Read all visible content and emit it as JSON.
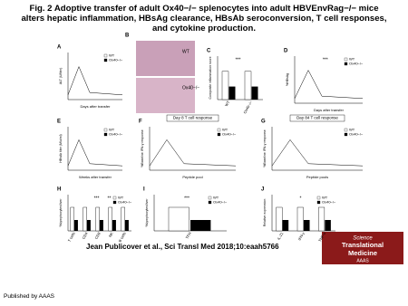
{
  "header": {
    "title": "Fig. 2 Adoptive transfer of adult Ox40−/− splenocytes into adult HBVEnvRag−/− mice alters hepatic inflammation, HBsAg clearance, HBsAb seroconversion, T cell responses, and cytokine production."
  },
  "panels": [
    {
      "label": "A",
      "y_axis": "ALT (U/liter)",
      "x_axis": "Days after transfer",
      "legend": [
        "WT",
        "Ox40−/−"
      ]
    },
    {
      "label": "B",
      "image_labels": [
        "WT",
        "Ox40−/−"
      ]
    },
    {
      "label": "C",
      "y_axis": "Composite inflammation score",
      "categories": [
        "WT",
        "Ox40−/−"
      ],
      "annotations": [
        "***"
      ]
    },
    {
      "label": "D",
      "y_axis": "%HBsAg",
      "x_axis": "Days after transfer",
      "legend": [
        "WT",
        "Ox40−/−"
      ],
      "annotations": [
        "***"
      ]
    },
    {
      "label": "E",
      "y_axis": "HBsAb titer (Mlu/ml)",
      "x_axis": "Weeks after transfer",
      "legend": [
        "WT",
        "Ox40−/−"
      ]
    },
    {
      "label": "F",
      "title": "Day 8 T cell response",
      "y_axis": "%Baseline IFN-γ response",
      "x_axis": "Peptide pool",
      "legend": [
        "WT",
        "Ox40−/−"
      ]
    },
    {
      "label": "G",
      "title": "Day 84 T cell response",
      "y_axis": "%Baseline IFN-γ response",
      "x_axis": "Peptide pools",
      "legend": [
        "WT",
        "Ox40−/−"
      ]
    },
    {
      "label": "H",
      "y_axis": "%Lymphocytes/liver",
      "categories": [
        "T cells",
        "CD4",
        "CD8",
        "NK",
        "B cells"
      ],
      "legend": [
        "WT",
        "Ox40−/−"
      ],
      "annotations": [
        "***",
        "**"
      ]
    },
    {
      "label": "I",
      "y_axis": "%Lymphocytes/liver",
      "categories": [
        "TFH"
      ],
      "legend": [
        "WT",
        "Ox40−/−"
      ],
      "annotations": [
        "***"
      ]
    },
    {
      "label": "J",
      "y_axis": "Relative expression",
      "categories": [
        "IL-21",
        "IFN-γ",
        "TNF-α"
      ],
      "legend": [
        "WT",
        "Ox40−/−"
      ],
      "annotations": [
        "*"
      ]
    }
  ],
  "citation": "Jean Publicover et al., Sci Transl Med 2018;10:eaah5766",
  "logo": {
    "line1": "Science",
    "line2": "Translational",
    "line3": "Medicine",
    "line4": "AAAS"
  },
  "footer": "Published by AAAS"
}
